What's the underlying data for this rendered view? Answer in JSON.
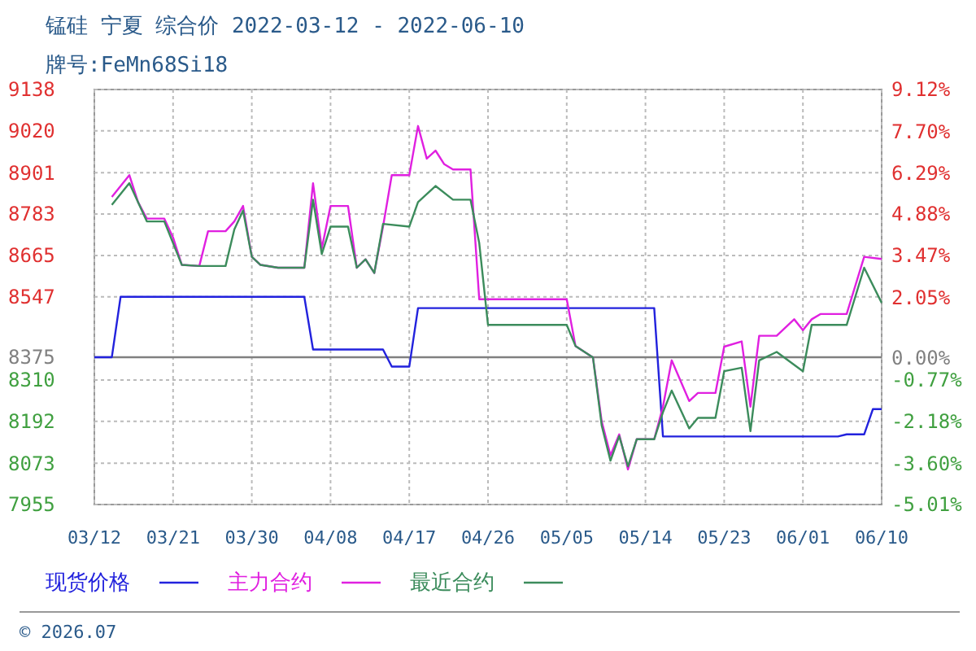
{
  "chart_data": {
    "type": "line",
    "title": "锰硅 宁夏 综合价 2022-03-12 - 2022-06-10",
    "subtitle": "牌号:FeMn68Si18",
    "annotations": [
      "© 2026.07"
    ],
    "xlim": [
      "--03-12",
      "--06-10"
    ],
    "xticks": [
      {
        "value": "--03-12",
        "label": "03/12"
      },
      {
        "value": "--03-21",
        "label": "03/21"
      },
      {
        "value": "--03-30",
        "label": "03/30"
      },
      {
        "value": "--04-08",
        "label": "04/08"
      },
      {
        "value": "--04-17",
        "label": "04/17"
      },
      {
        "value": "--04-26",
        "label": "04/26"
      },
      {
        "value": "--05-05",
        "label": "05/05"
      },
      {
        "value": "--05-14",
        "label": "05/14"
      },
      {
        "value": "--05-23",
        "label": "05/23"
      },
      {
        "value": "--06-01",
        "label": "06/01"
      },
      {
        "value": "--06-10",
        "label": "06/10"
      }
    ],
    "ylim": [
      7955,
      9138
    ],
    "yticks": [
      7955,
      8073,
      8192,
      8310,
      8375,
      8547,
      8665,
      8783,
      8901,
      9020,
      9138
    ],
    "y2lim": [
      -5.01,
      9.12
    ],
    "y2ticks": [
      {
        "value": -5.01,
        "label": "-5.01%"
      },
      {
        "value": -3.6,
        "label": "-3.60%"
      },
      {
        "value": -2.18,
        "label": "-2.18%"
      },
      {
        "value": -0.77,
        "label": "-0.77%"
      },
      {
        "value": 0,
        "label": "0.00%"
      },
      {
        "value": 2.05,
        "label": "2.05%"
      },
      {
        "value": 3.47,
        "label": "3.47%"
      },
      {
        "value": 4.88,
        "label": "4.88%"
      },
      {
        "value": 6.29,
        "label": "6.29%"
      },
      {
        "value": 7.7,
        "label": "7.70%"
      },
      {
        "value": 9.12,
        "label": "9.12%"
      }
    ],
    "ref_lines": [
      {
        "axis": "y",
        "value": 8375,
        "color": "#808080"
      }
    ],
    "grid": true,
    "legend": "bottom",
    "line_style": "solid",
    "marker": "none",
    "series": [
      {
        "name": "现货价格",
        "color": "#2222dd",
        "x": [
          "--03-12",
          "--03-14",
          "--03-15",
          "--04-05",
          "--04-06",
          "--04-14",
          "--04-15",
          "--04-17",
          "--04-18",
          "--05-15",
          "--05-16",
          "--06-05",
          "--06-06",
          "--06-08",
          "--06-09",
          "--06-10"
        ],
        "values": [
          8375,
          8375,
          8547,
          8547,
          8397,
          8397,
          8348,
          8348,
          8515,
          8515,
          8149,
          8149,
          8155,
          8155,
          8227,
          8227
        ]
      },
      {
        "name": "主力合约",
        "color": "#e020e0",
        "x": [
          "--03-14",
          "--03-16",
          "--03-17",
          "--03-18",
          "--03-20",
          "--03-21",
          "--03-22",
          "--03-24",
          "--03-25",
          "--03-27",
          "--03-28",
          "--03-29",
          "--03-30",
          "--03-31",
          "--04-02",
          "--04-05",
          "--04-06",
          "--04-07",
          "--04-08",
          "--04-10",
          "--04-11",
          "--04-12",
          "--04-13",
          "--04-14",
          "--04-15",
          "--04-17",
          "--04-18",
          "--04-19",
          "--04-20",
          "--04-21",
          "--04-22",
          "--04-24",
          "--04-25",
          "--05-05",
          "--05-06",
          "--05-08",
          "--05-09",
          "--05-10",
          "--05-11",
          "--05-12",
          "--05-13",
          "--05-15",
          "--05-16",
          "--05-17",
          "--05-19",
          "--05-20",
          "--05-22",
          "--05-23",
          "--05-25",
          "--05-26",
          "--05-27",
          "--05-29",
          "--05-31",
          "--06-01",
          "--06-02",
          "--06-03",
          "--06-06",
          "--06-08",
          "--06-10"
        ],
        "values": [
          8832,
          8894,
          8817,
          8770,
          8770,
          8716,
          8638,
          8635,
          8734,
          8734,
          8762,
          8806,
          8661,
          8638,
          8630,
          8630,
          8871,
          8685,
          8806,
          8806,
          8630,
          8654,
          8615,
          8747,
          8894,
          8894,
          9034,
          8941,
          8964,
          8925,
          8910,
          8910,
          8540,
          8540,
          8407,
          8374,
          8192,
          8095,
          8155,
          8055,
          8141,
          8141,
          8234,
          8366,
          8250,
          8273,
          8273,
          8405,
          8420,
          8234,
          8436,
          8436,
          8483,
          8452,
          8483,
          8498,
          8498,
          8661,
          8655
        ]
      },
      {
        "name": "最近合约",
        "color": "#3c8c5c",
        "x": [
          "--03-14",
          "--03-16",
          "--03-18",
          "--03-20",
          "--03-22",
          "--03-24",
          "--03-25",
          "--03-27",
          "--03-28",
          "--03-29",
          "--03-30",
          "--03-31",
          "--04-02",
          "--04-05",
          "--04-06",
          "--04-07",
          "--04-08",
          "--04-10",
          "--04-11",
          "--04-12",
          "--04-13",
          "--04-14",
          "--04-17",
          "--04-18",
          "--04-20",
          "--04-22",
          "--04-24",
          "--04-25",
          "--04-26",
          "--05-05",
          "--05-06",
          "--05-08",
          "--05-09",
          "--05-10",
          "--05-11",
          "--05-12",
          "--05-13",
          "--05-15",
          "--05-16",
          "--05-17",
          "--05-19",
          "--05-20",
          "--05-22",
          "--05-23",
          "--05-25",
          "--05-26",
          "--05-27",
          "--05-29",
          "--06-01",
          "--06-02",
          "--06-06",
          "--06-08",
          "--06-10"
        ],
        "values": [
          8809,
          8871,
          8762,
          8762,
          8638,
          8635,
          8635,
          8635,
          8739,
          8793,
          8661,
          8638,
          8630,
          8630,
          8824,
          8669,
          8747,
          8747,
          8630,
          8654,
          8615,
          8755,
          8747,
          8817,
          8863,
          8824,
          8824,
          8700,
          8467,
          8467,
          8407,
          8374,
          8180,
          8080,
          8150,
          8064,
          8141,
          8141,
          8218,
          8280,
          8172,
          8202,
          8202,
          8335,
          8345,
          8164,
          8366,
          8390,
          8335,
          8467,
          8467,
          8630,
          8530
        ]
      }
    ]
  }
}
